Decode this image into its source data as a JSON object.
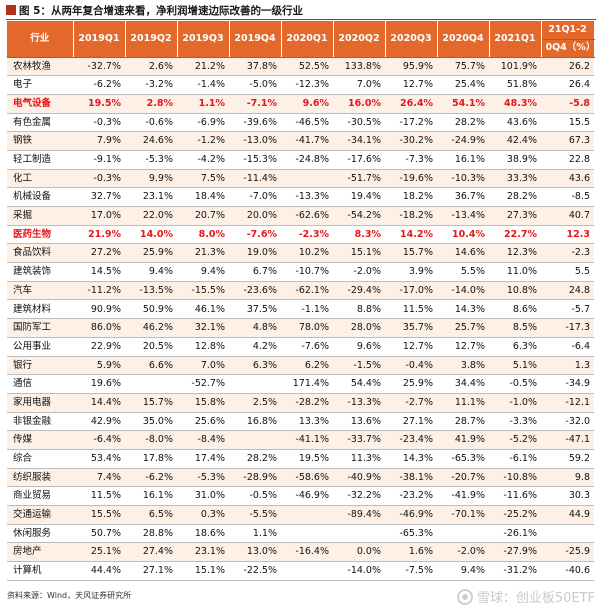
{
  "title": "图 5：从两年复合增速来看，净利润增速边际改善的一级行业",
  "columns": [
    "行业",
    "2019Q1",
    "2019Q2",
    "2019Q3",
    "2019Q4",
    "2020Q1",
    "2020Q2",
    "2020Q3",
    "2020Q4",
    "2021Q1"
  ],
  "last_column": [
    "21Q1-2",
    "0Q4（%）"
  ],
  "rows": [
    {
      "name": "农林牧渔",
      "values": [
        "-32.7%",
        "2.6%",
        "21.2%",
        "37.8%",
        "52.5%",
        "133.8%",
        "95.9%",
        "75.7%",
        "101.9%",
        "26.2"
      ],
      "highlight": false
    },
    {
      "name": "电子",
      "values": [
        "-6.2%",
        "-3.2%",
        "-1.4%",
        "-5.0%",
        "-12.3%",
        "7.0%",
        "12.7%",
        "25.4%",
        "51.8%",
        "26.4"
      ],
      "highlight": false
    },
    {
      "name": "电气设备",
      "values": [
        "19.5%",
        "2.8%",
        "1.1%",
        "-7.1%",
        "9.6%",
        "16.0%",
        "26.4%",
        "54.1%",
        "48.3%",
        "-5.8"
      ],
      "highlight": true
    },
    {
      "name": "有色金属",
      "values": [
        "-0.3%",
        "-0.6%",
        "-6.9%",
        "-39.6%",
        "-46.5%",
        "-30.5%",
        "-17.2%",
        "28.2%",
        "43.6%",
        "15.5"
      ],
      "highlight": false
    },
    {
      "name": "钢铁",
      "values": [
        "7.9%",
        "24.6%",
        "-1.2%",
        "-13.0%",
        "-41.7%",
        "-34.1%",
        "-30.2%",
        "-24.9%",
        "42.4%",
        "67.3"
      ],
      "highlight": false
    },
    {
      "name": "轻工制造",
      "values": [
        "-9.1%",
        "-5.3%",
        "-4.2%",
        "-15.3%",
        "-24.8%",
        "-17.6%",
        "-7.3%",
        "16.1%",
        "38.9%",
        "22.8"
      ],
      "highlight": false
    },
    {
      "name": "化工",
      "values": [
        "-0.3%",
        "9.9%",
        "7.5%",
        "-11.4%",
        "",
        "-51.7%",
        "-19.6%",
        "-10.3%",
        "33.3%",
        "43.6"
      ],
      "highlight": false
    },
    {
      "name": "机械设备",
      "values": [
        "32.7%",
        "23.1%",
        "18.4%",
        "-7.0%",
        "-13.3%",
        "19.4%",
        "18.2%",
        "36.7%",
        "28.2%",
        "-8.5"
      ],
      "highlight": false
    },
    {
      "name": "采掘",
      "values": [
        "17.0%",
        "22.0%",
        "20.7%",
        "20.0%",
        "-62.6%",
        "-54.2%",
        "-18.2%",
        "-13.4%",
        "27.3%",
        "40.7"
      ],
      "highlight": false
    },
    {
      "name": "医药生物",
      "values": [
        "21.9%",
        "14.0%",
        "8.0%",
        "-7.6%",
        "-2.3%",
        "8.3%",
        "14.2%",
        "10.4%",
        "22.7%",
        "12.3"
      ],
      "highlight": true
    },
    {
      "name": "食品饮料",
      "values": [
        "27.2%",
        "25.9%",
        "21.3%",
        "19.0%",
        "10.2%",
        "15.1%",
        "15.7%",
        "14.6%",
        "12.3%",
        "-2.3"
      ],
      "highlight": false
    },
    {
      "name": "建筑装饰",
      "values": [
        "14.5%",
        "9.4%",
        "9.4%",
        "6.7%",
        "-10.7%",
        "-2.0%",
        "3.9%",
        "5.5%",
        "11.0%",
        "5.5"
      ],
      "highlight": false
    },
    {
      "name": "汽车",
      "values": [
        "-11.2%",
        "-13.5%",
        "-15.5%",
        "-23.6%",
        "-62.1%",
        "-29.4%",
        "-17.0%",
        "-14.0%",
        "10.8%",
        "24.8"
      ],
      "highlight": false
    },
    {
      "name": "建筑材料",
      "values": [
        "90.9%",
        "50.9%",
        "46.1%",
        "37.5%",
        "-1.1%",
        "8.8%",
        "11.5%",
        "14.3%",
        "8.6%",
        "-5.7"
      ],
      "highlight": false
    },
    {
      "name": "国防军工",
      "values": [
        "86.0%",
        "46.2%",
        "32.1%",
        "4.8%",
        "78.0%",
        "28.0%",
        "35.7%",
        "25.7%",
        "8.5%",
        "-17.3"
      ],
      "highlight": false
    },
    {
      "name": "公用事业",
      "values": [
        "22.9%",
        "20.5%",
        "12.8%",
        "4.2%",
        "-7.6%",
        "9.6%",
        "12.7%",
        "12.7%",
        "6.3%",
        "-6.4"
      ],
      "highlight": false
    },
    {
      "name": "银行",
      "values": [
        "5.9%",
        "6.6%",
        "7.0%",
        "6.3%",
        "6.2%",
        "-1.5%",
        "-0.4%",
        "3.8%",
        "5.1%",
        "1.3"
      ],
      "highlight": false
    },
    {
      "name": "通信",
      "values": [
        "19.6%",
        "",
        "-52.7%",
        "",
        "171.4%",
        "54.4%",
        "25.9%",
        "34.4%",
        "-0.5%",
        "-34.9"
      ],
      "highlight": false
    },
    {
      "name": "家用电器",
      "values": [
        "14.4%",
        "15.7%",
        "15.8%",
        "2.5%",
        "-28.2%",
        "-13.3%",
        "-2.7%",
        "11.1%",
        "-1.0%",
        "-12.1"
      ],
      "highlight": false
    },
    {
      "name": "非银金融",
      "values": [
        "42.9%",
        "35.0%",
        "25.6%",
        "16.8%",
        "13.3%",
        "13.6%",
        "27.1%",
        "28.7%",
        "-3.3%",
        "-32.0"
      ],
      "highlight": false
    },
    {
      "name": "传媒",
      "values": [
        "-6.4%",
        "-8.0%",
        "-8.4%",
        "",
        "-41.1%",
        "-33.7%",
        "-23.4%",
        "41.9%",
        "-5.2%",
        "-47.1"
      ],
      "highlight": false
    },
    {
      "name": "综合",
      "values": [
        "53.4%",
        "17.8%",
        "17.4%",
        "28.2%",
        "19.5%",
        "11.3%",
        "14.3%",
        "-65.3%",
        "-6.1%",
        "59.2"
      ],
      "highlight": false
    },
    {
      "name": "纺织服装",
      "values": [
        "7.4%",
        "-6.2%",
        "-5.3%",
        "-28.9%",
        "-58.6%",
        "-40.9%",
        "-38.1%",
        "-20.7%",
        "-10.8%",
        "9.8"
      ],
      "highlight": false
    },
    {
      "name": "商业贸易",
      "values": [
        "11.5%",
        "16.1%",
        "31.0%",
        "-0.5%",
        "-46.9%",
        "-32.2%",
        "-23.2%",
        "-41.9%",
        "-11.6%",
        "30.3"
      ],
      "highlight": false
    },
    {
      "name": "交通运输",
      "values": [
        "15.5%",
        "6.5%",
        "0.3%",
        "-5.5%",
        "",
        "-89.4%",
        "-46.9%",
        "-70.1%",
        "-25.2%",
        "44.9"
      ],
      "highlight": false
    },
    {
      "name": "休闲服务",
      "values": [
        "50.7%",
        "28.8%",
        "18.6%",
        "1.1%",
        "",
        "",
        "-65.3%",
        "",
        "-26.1%",
        ""
      ],
      "highlight": false
    },
    {
      "name": "房地产",
      "values": [
        "25.1%",
        "27.4%",
        "23.1%",
        "13.0%",
        "-16.4%",
        "0.0%",
        "1.6%",
        "-2.0%",
        "-27.9%",
        "-25.9"
      ],
      "highlight": false
    },
    {
      "name": "计算机",
      "values": [
        "44.4%",
        "27.1%",
        "15.1%",
        "-22.5%",
        "",
        "-14.0%",
        "-7.5%",
        "9.4%",
        "-31.2%",
        "-40.6"
      ],
      "highlight": false
    }
  ],
  "source": "资料来源：Wind，天风证券研究所",
  "watermark": "雪球：创业板50ETF",
  "colors": {
    "header_bg": "#e2682c",
    "highlight_text": "#e8161b",
    "row_tint": "#fdf0e6"
  },
  "icons": {
    "title": "red-square-icon",
    "watermark": "xueqiu-logo-icon"
  }
}
